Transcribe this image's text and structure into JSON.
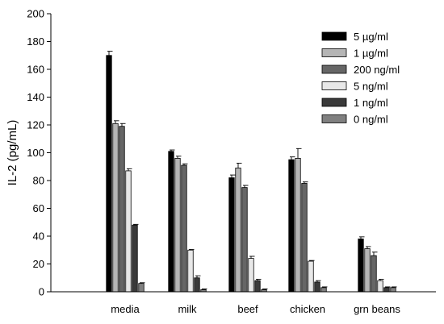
{
  "chart_data": {
    "type": "bar",
    "ylabel": "IL-2 (pg/mL)",
    "xlabel": "",
    "ylim": [
      0,
      200
    ],
    "yticks": [
      0,
      20,
      40,
      60,
      80,
      100,
      120,
      140,
      160,
      180,
      200
    ],
    "categories": [
      "media",
      "milk",
      "beef",
      "chicken",
      "grn beans"
    ],
    "legend_position": "top-right",
    "grid": false,
    "series": [
      {
        "name": "5 µg/ml",
        "color": "#000000",
        "values": [
          170,
          101,
          82,
          95,
          38
        ],
        "errors": [
          3,
          1,
          2,
          2,
          1.5
        ]
      },
      {
        "name": "1 µg/ml",
        "color": "#b5b5b5",
        "values": [
          121,
          96,
          89,
          96,
          31
        ],
        "errors": [
          2,
          1.5,
          3.5,
          7,
          1.5
        ]
      },
      {
        "name": "200 ng/ml",
        "color": "#666666",
        "values": [
          119,
          91,
          75,
          78,
          26
        ],
        "errors": [
          2,
          1,
          1.5,
          1,
          2.5
        ]
      },
      {
        "name": "5 ng/ml",
        "color": "#e8e8e8",
        "values": [
          87,
          30,
          24,
          22,
          8
        ],
        "errors": [
          1.5,
          0.5,
          1.5,
          0.5,
          1
        ]
      },
      {
        "name": "1 ng/ml",
        "color": "#3a3a3a",
        "values": [
          48,
          10,
          8,
          7,
          3
        ],
        "errors": [
          0.5,
          1.5,
          1,
          1,
          0.5
        ]
      },
      {
        "name": "0 ng/ml",
        "color": "#808080",
        "values": [
          6,
          1.5,
          1.5,
          3,
          3
        ],
        "errors": [
          0.5,
          0.5,
          0.5,
          0.5,
          0.5
        ]
      }
    ]
  }
}
